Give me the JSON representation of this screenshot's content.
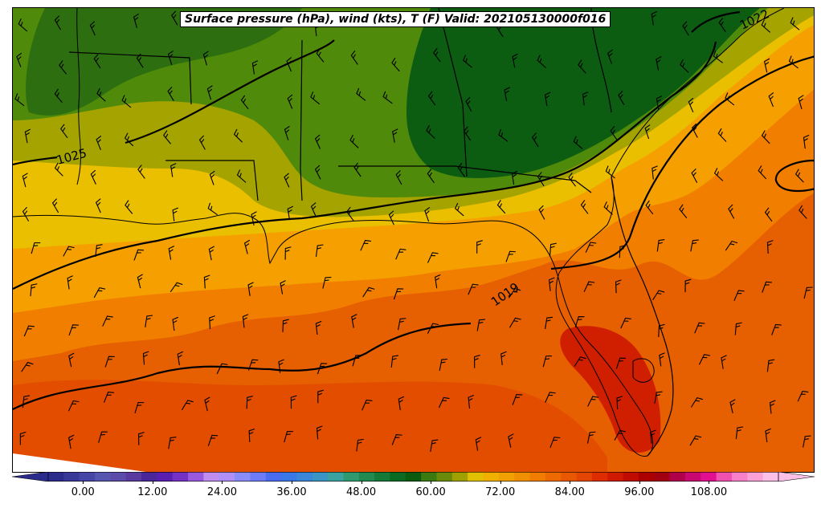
{
  "title": "Surface pressure (hPa), wind (kts), T (F) Valid: 202105130000f016",
  "isobars": [
    {
      "label": "1025"
    },
    {
      "label": "1022"
    },
    {
      "label": "1019"
    }
  ],
  "colorbar": {
    "min": -6,
    "max": 120,
    "step": 3,
    "ticks": [
      "0.00",
      "12.00",
      "24.00",
      "36.00",
      "48.00",
      "60.00",
      "72.00",
      "84.00",
      "96.00",
      "108.00"
    ],
    "tick_values": [
      0,
      12,
      24,
      36,
      48,
      60,
      72,
      84,
      96,
      108
    ],
    "colors": [
      "#2b2b8c",
      "#383899",
      "#4646a6",
      "#5656b0",
      "#5a4ca8",
      "#5b3aa0",
      "#4a2798",
      "#5a1fb0",
      "#7530c4",
      "#9a58dc",
      "#c08cf0",
      "#b090f8",
      "#8a8cfc",
      "#6e7cfa",
      "#4a6cf0",
      "#3a78e8",
      "#3a86d8",
      "#3a94c4",
      "#3aa2a0",
      "#2f9a70",
      "#228a50",
      "#157a38",
      "#0a6a22",
      "#0a5a10",
      "#3a7a10",
      "#6a8a0a",
      "#a0a000",
      "#e0c000",
      "#f0b000",
      "#f0a000",
      "#f09000",
      "#f07c00",
      "#ee6a00",
      "#e85800",
      "#e24600",
      "#dc2c00",
      "#d01a00",
      "#c00c00",
      "#ac0000",
      "#a00010",
      "#b0004a",
      "#c80870",
      "#e01090",
      "#f050b0",
      "#f880c8",
      "#fca0d8",
      "#fcc0e8"
    ]
  },
  "colors": {
    "dark_green": "#0a5a10",
    "medium_green": "#3a7a10",
    "light_green": "#4f8a0a",
    "olive": "#a0a000",
    "yellow": "#e8be00",
    "light_orange": "#f0a000",
    "orange": "#f08000",
    "dark_orange": "#e86400",
    "red_orange": "#e24600",
    "red": "#cc1a00"
  }
}
